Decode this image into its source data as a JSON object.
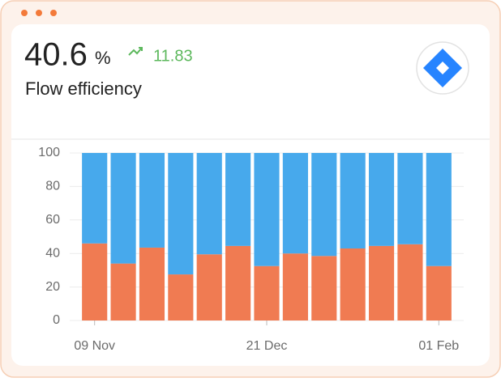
{
  "header": {
    "value": "40.6",
    "unit": "%",
    "change": "11.83",
    "label": "Flow efficiency"
  },
  "chart_data": {
    "type": "stacked-bar",
    "categories": [
      "09 Nov",
      null,
      null,
      null,
      null,
      null,
      "21 Dec",
      null,
      null,
      null,
      null,
      null,
      "01 Feb"
    ],
    "series": [
      {
        "color": "#f07b52",
        "values": [
          46,
          34,
          43.5,
          27.5,
          39.5,
          44.5,
          32.5,
          40,
          38.5,
          43,
          44.5,
          45.5,
          32.5
        ]
      },
      {
        "color": "#47a9ec",
        "values": [
          54,
          66,
          56.5,
          72.5,
          60.5,
          55.5,
          67.5,
          60,
          61.5,
          57,
          55.5,
          54.5,
          67.5
        ]
      }
    ],
    "ylim": [
      0,
      100
    ],
    "yticks": [
      0,
      20,
      40,
      60,
      80,
      100
    ],
    "grid": true
  }
}
